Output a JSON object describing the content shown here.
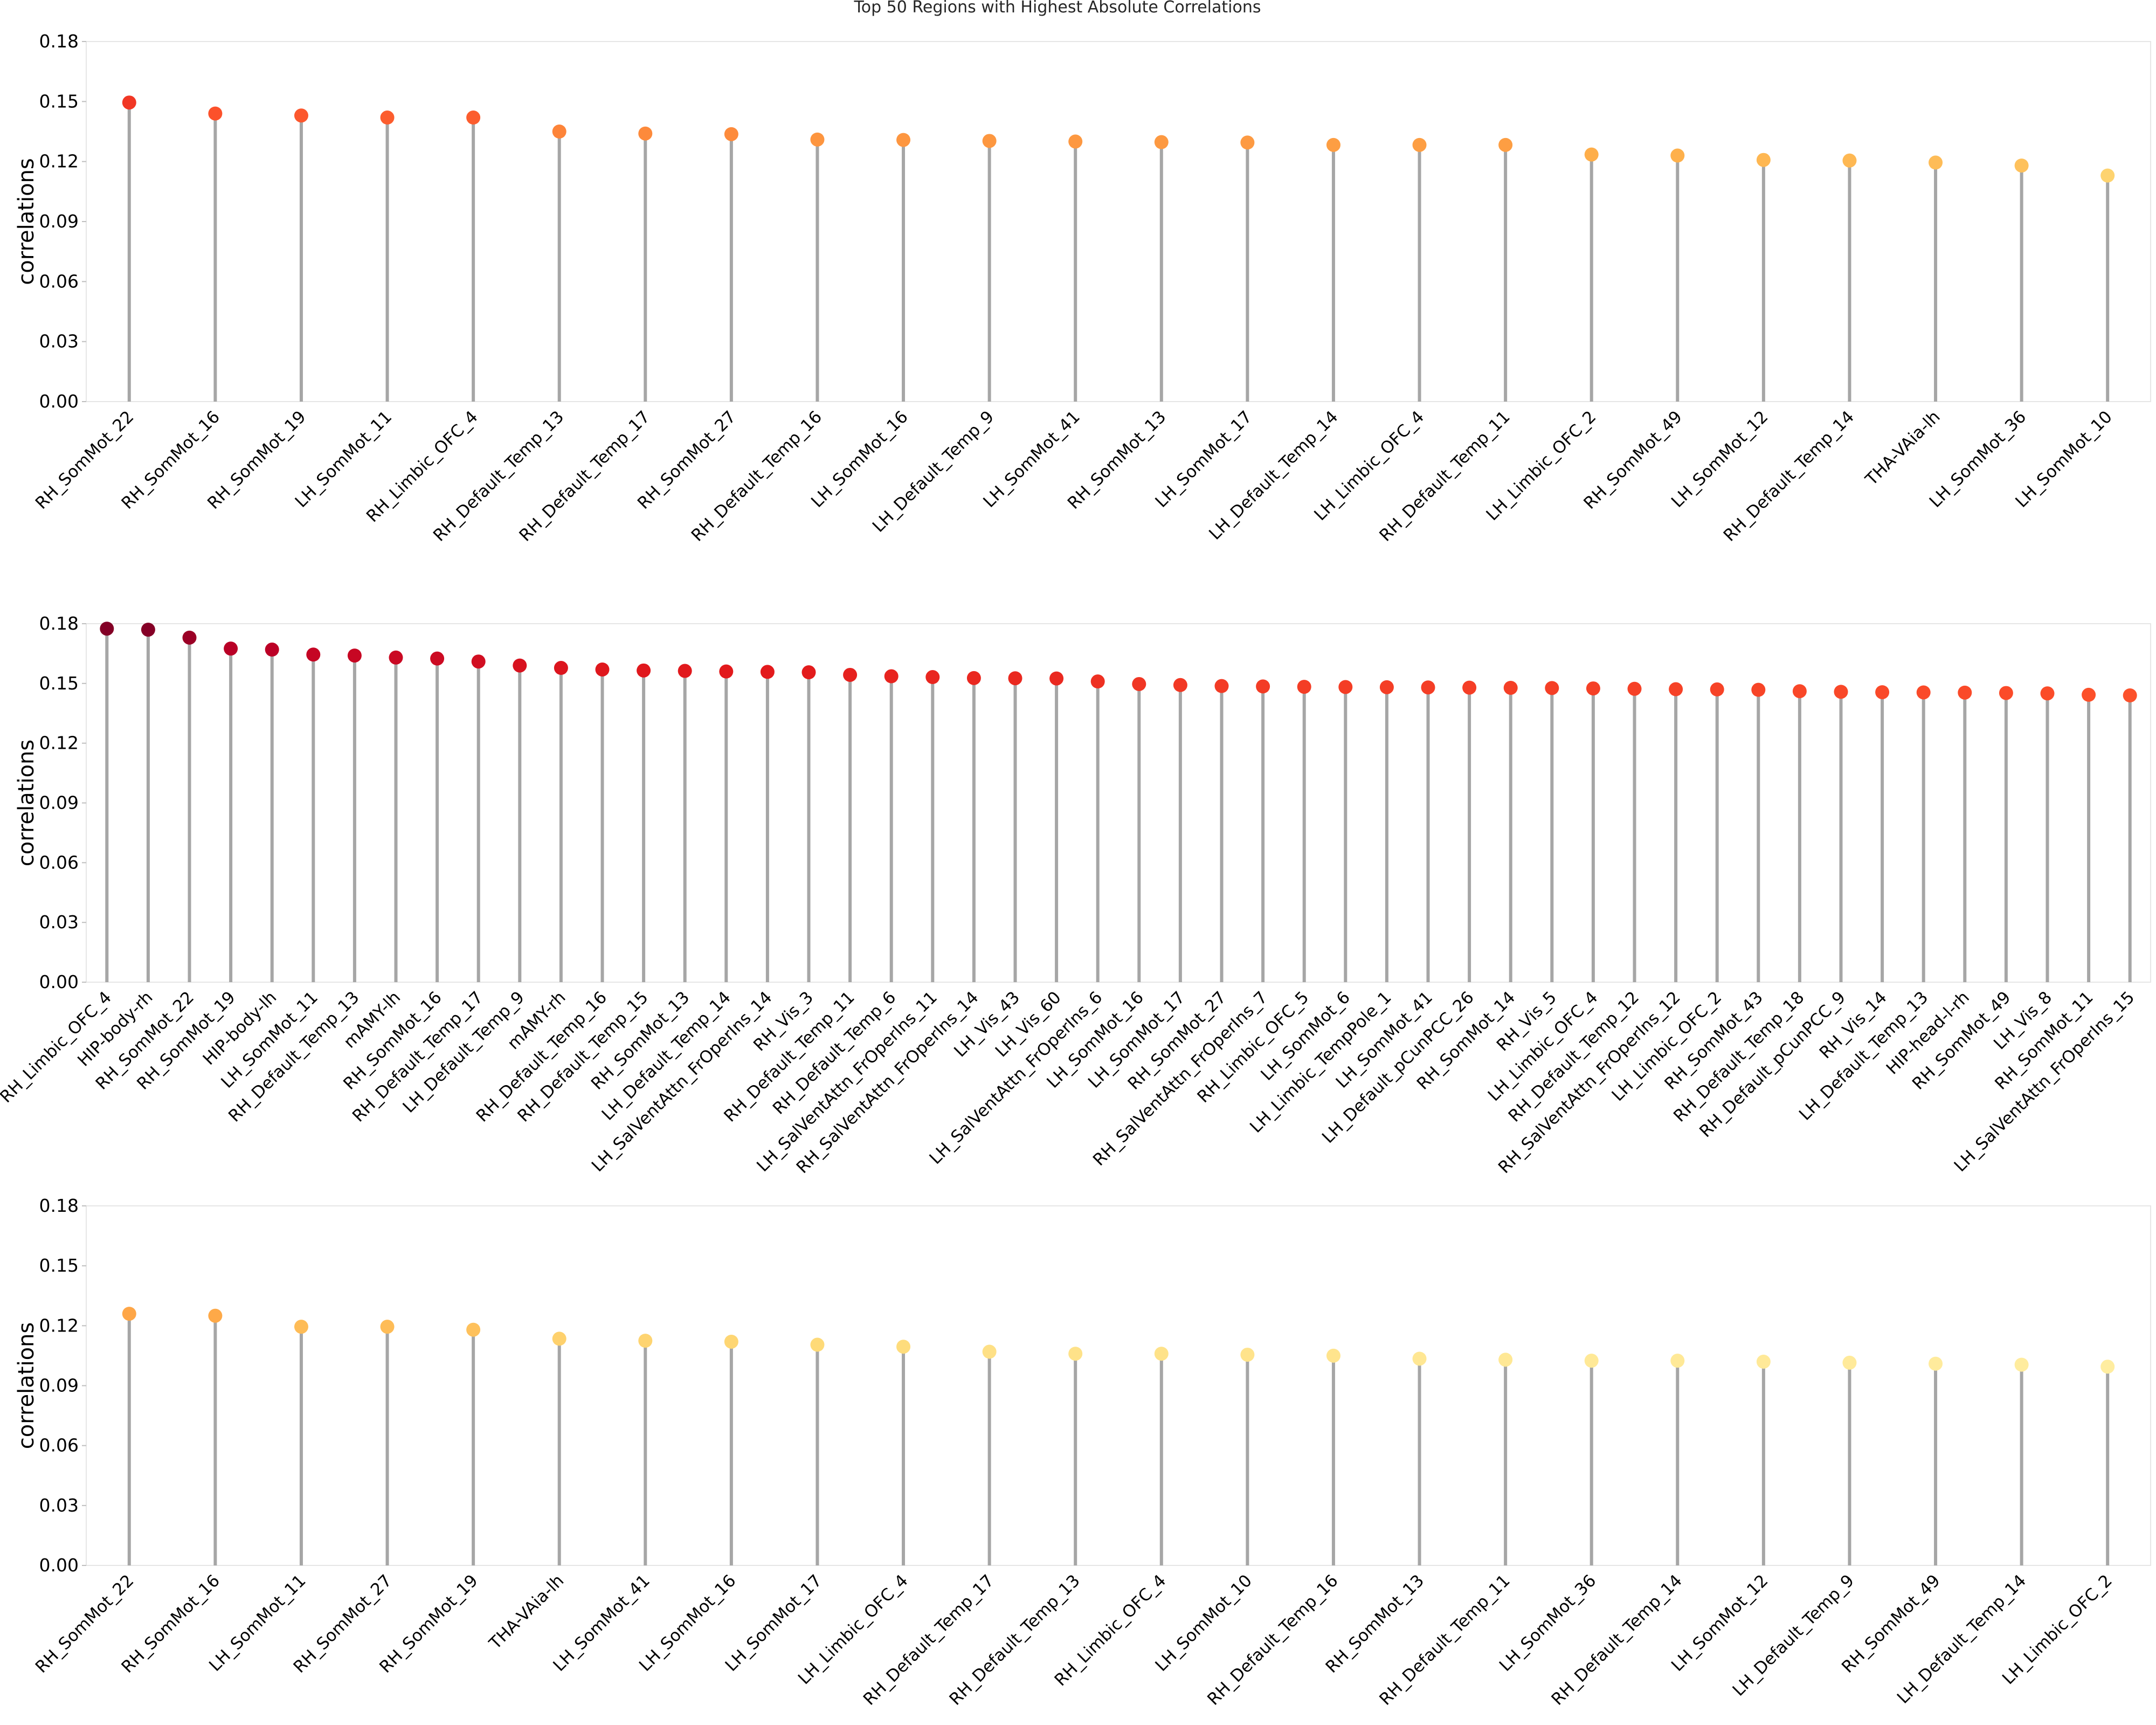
{
  "figure_title": "Top 50 Regions with Highest Absolute Correlations",
  "chart_data": [
    {
      "type": "lollipop",
      "title": "Top 50 Regions with Highest Absolute Correlations",
      "xlabel": "",
      "ylabel": "correlations",
      "ylim": [
        0,
        0.18
      ],
      "yticks": [
        "0.00",
        "0.03",
        "0.06",
        "0.09",
        "0.12",
        "0.15",
        "0.18"
      ],
      "grid": false,
      "colormap": "YlOrRd",
      "categories": [
        "RH_SomMot_22",
        "RH_SomMot_16",
        "RH_SomMot_19",
        "LH_SomMot_11",
        "RH_Limbic_OFC_4",
        "RH_Default_Temp_13",
        "RH_Default_Temp_17",
        "RH_SomMot_27",
        "RH_Default_Temp_16",
        "LH_SomMot_16",
        "LH_Default_Temp_9",
        "LH_SomMot_41",
        "RH_SomMot_13",
        "LH_SomMot_17",
        "LH_Default_Temp_14",
        "LH_Limbic_OFC_4",
        "RH_Default_Temp_11",
        "LH_Limbic_OFC_2",
        "RH_SomMot_49",
        "LH_SomMot_12",
        "RH_Default_Temp_14",
        "THA-VAia-lh",
        "LH_SomMot_36",
        "LH_SomMot_10"
      ],
      "values": [
        0.1495,
        0.144,
        0.143,
        0.142,
        0.142,
        0.135,
        0.134,
        0.1337,
        0.131,
        0.1308,
        0.1303,
        0.13,
        0.1297,
        0.1295,
        0.1283,
        0.1283,
        0.1283,
        0.1235,
        0.123,
        0.1208,
        0.1205,
        0.1195,
        0.118,
        0.113
      ]
    },
    {
      "type": "lollipop",
      "title": "",
      "xlabel": "",
      "ylabel": "correlations",
      "ylim": [
        0,
        0.18
      ],
      "yticks": [
        "0.00",
        "0.03",
        "0.06",
        "0.09",
        "0.12",
        "0.15",
        "0.18"
      ],
      "grid": false,
      "colormap": "YlOrRd",
      "categories": [
        "RH_Limbic_OFC_4",
        "HIP-body-rh",
        "RH_SomMot_22",
        "RH_SomMot_19",
        "HIP-body-lh",
        "LH_SomMot_11",
        "RH_Default_Temp_13",
        "mAMY-lh",
        "RH_SomMot_16",
        "RH_Default_Temp_17",
        "LH_Default_Temp_9",
        "mAMY-rh",
        "RH_Default_Temp_16",
        "RH_Default_Temp_15",
        "RH_SomMot_13",
        "LH_Default_Temp_14",
        "LH_SalVentAttn_FrOperIns_14",
        "RH_Vis_3",
        "RH_Default_Temp_11",
        "RH_Default_Temp_6",
        "LH_SalVentAttn_FrOperIns_11",
        "RH_SalVentAttn_FrOperIns_14",
        "LH_Vis_43",
        "LH_Vis_60",
        "LH_SalVentAttn_FrOperIns_6",
        "LH_SomMot_16",
        "LH_SomMot_17",
        "RH_SomMot_27",
        "RH_SalVentAttn_FrOperIns_7",
        "RH_Limbic_OFC_5",
        "LH_SomMot_6",
        "LH_Limbic_TempPole_1",
        "LH_SomMot_41",
        "LH_Default_pCunPCC_26",
        "RH_SomMot_14",
        "RH_Vis_5",
        "LH_Limbic_OFC_4",
        "RH_Default_Temp_12",
        "RH_SalVentAttn_FrOperIns_12",
        "LH_Limbic_OFC_2",
        "RH_SomMot_43",
        "RH_Default_Temp_18",
        "RH_Default_pCunPCC_9",
        "RH_Vis_14",
        "LH_Default_Temp_13",
        "HIP-head-l-rh",
        "RH_SomMot_49",
        "LH_Vis_8",
        "RH_SomMot_11",
        "LH_SalVentAttn_FrOperIns_15"
      ],
      "values": [
        0.1775,
        0.177,
        0.173,
        0.1675,
        0.167,
        0.1645,
        0.164,
        0.163,
        0.1625,
        0.161,
        0.159,
        0.1578,
        0.157,
        0.1565,
        0.1563,
        0.156,
        0.1558,
        0.1556,
        0.1543,
        0.1536,
        0.1532,
        0.1527,
        0.1526,
        0.1525,
        0.151,
        0.1497,
        0.1492,
        0.1487,
        0.1485,
        0.1483,
        0.1482,
        0.1481,
        0.148,
        0.1479,
        0.1478,
        0.1477,
        0.1475,
        0.1473,
        0.1471,
        0.147,
        0.1468,
        0.1461,
        0.1458,
        0.1456,
        0.1455,
        0.1454,
        0.1452,
        0.145,
        0.1443,
        0.144
      ]
    },
    {
      "type": "lollipop",
      "title": "",
      "xlabel": "",
      "ylabel": "correlations",
      "ylim": [
        0,
        0.18
      ],
      "yticks": [
        "0.00",
        "0.03",
        "0.06",
        "0.09",
        "0.12",
        "0.15",
        "0.18"
      ],
      "grid": false,
      "colormap": "YlOrRd",
      "categories": [
        "RH_SomMot_22",
        "RH_SomMot_16",
        "LH_SomMot_11",
        "RH_SomMot_27",
        "RH_SomMot_19",
        "THA-VAia-lh",
        "LH_SomMot_41",
        "LH_SomMot_16",
        "LH_SomMot_17",
        "LH_Limbic_OFC_4",
        "RH_Default_Temp_17",
        "RH_Default_Temp_13",
        "RH_Limbic_OFC_4",
        "LH_SomMot_10",
        "RH_Default_Temp_16",
        "RH_SomMot_13",
        "RH_Default_Temp_11",
        "LH_SomMot_36",
        "RH_Default_Temp_14",
        "LH_SomMot_12",
        "LH_Default_Temp_9",
        "RH_SomMot_49",
        "LH_Default_Temp_14",
        "LH_Limbic_OFC_2"
      ],
      "values": [
        0.126,
        0.125,
        0.1195,
        0.1195,
        0.118,
        0.1135,
        0.1125,
        0.112,
        0.1105,
        0.1095,
        0.107,
        0.106,
        0.106,
        0.1055,
        0.105,
        0.1035,
        0.103,
        0.1025,
        0.1025,
        0.102,
        0.1015,
        0.101,
        0.1005,
        0.0995
      ]
    }
  ]
}
